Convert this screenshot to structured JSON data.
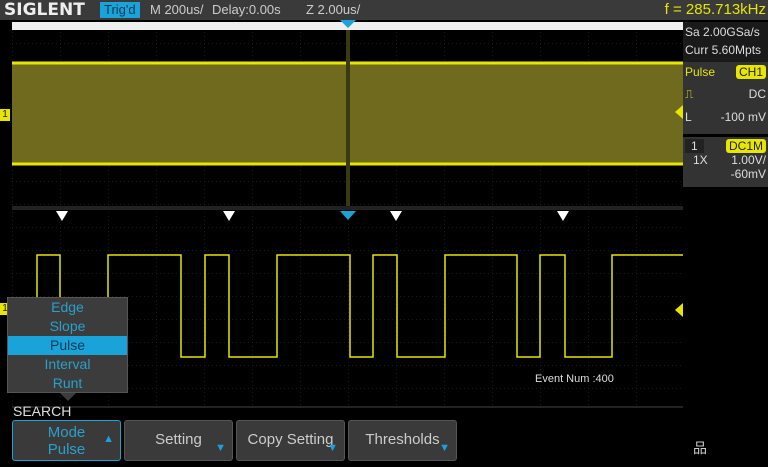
{
  "header": {
    "logo": "SIGLENT",
    "trig_status": "Trig'd",
    "timebase": "M 200us/",
    "delay": "Delay:0.00s",
    "zoom": "Z 2.00us/",
    "frequency": "f = 285.713kHz"
  },
  "right_panel": {
    "sample_rate": "Sa 2.00GSa/s",
    "memory": "Curr 5.60Mpts",
    "trigger_type": "Pulse",
    "trigger_source": "CH1",
    "coupling": "DC",
    "level_label": "L",
    "level": "-100 mV",
    "channel": "1",
    "channel_coupling": "DC1M",
    "probe": "1X",
    "volts_div": "1.00V/",
    "offset": "-60mV"
  },
  "channel_marker": "1",
  "event_num": "Event Num :400",
  "mode_menu": {
    "items": [
      "Edge",
      "Slope",
      "Pulse",
      "Interval",
      "Runt"
    ],
    "selected": "Pulse"
  },
  "softkeys": {
    "title": "SEARCH",
    "mode_label": "Mode",
    "mode_value": "Pulse",
    "setting": "Setting",
    "copy_setting": "Copy Setting",
    "thresholds": "Thresholds"
  },
  "colors": {
    "trace": "#e6e600",
    "accent": "#1aa3d9"
  }
}
